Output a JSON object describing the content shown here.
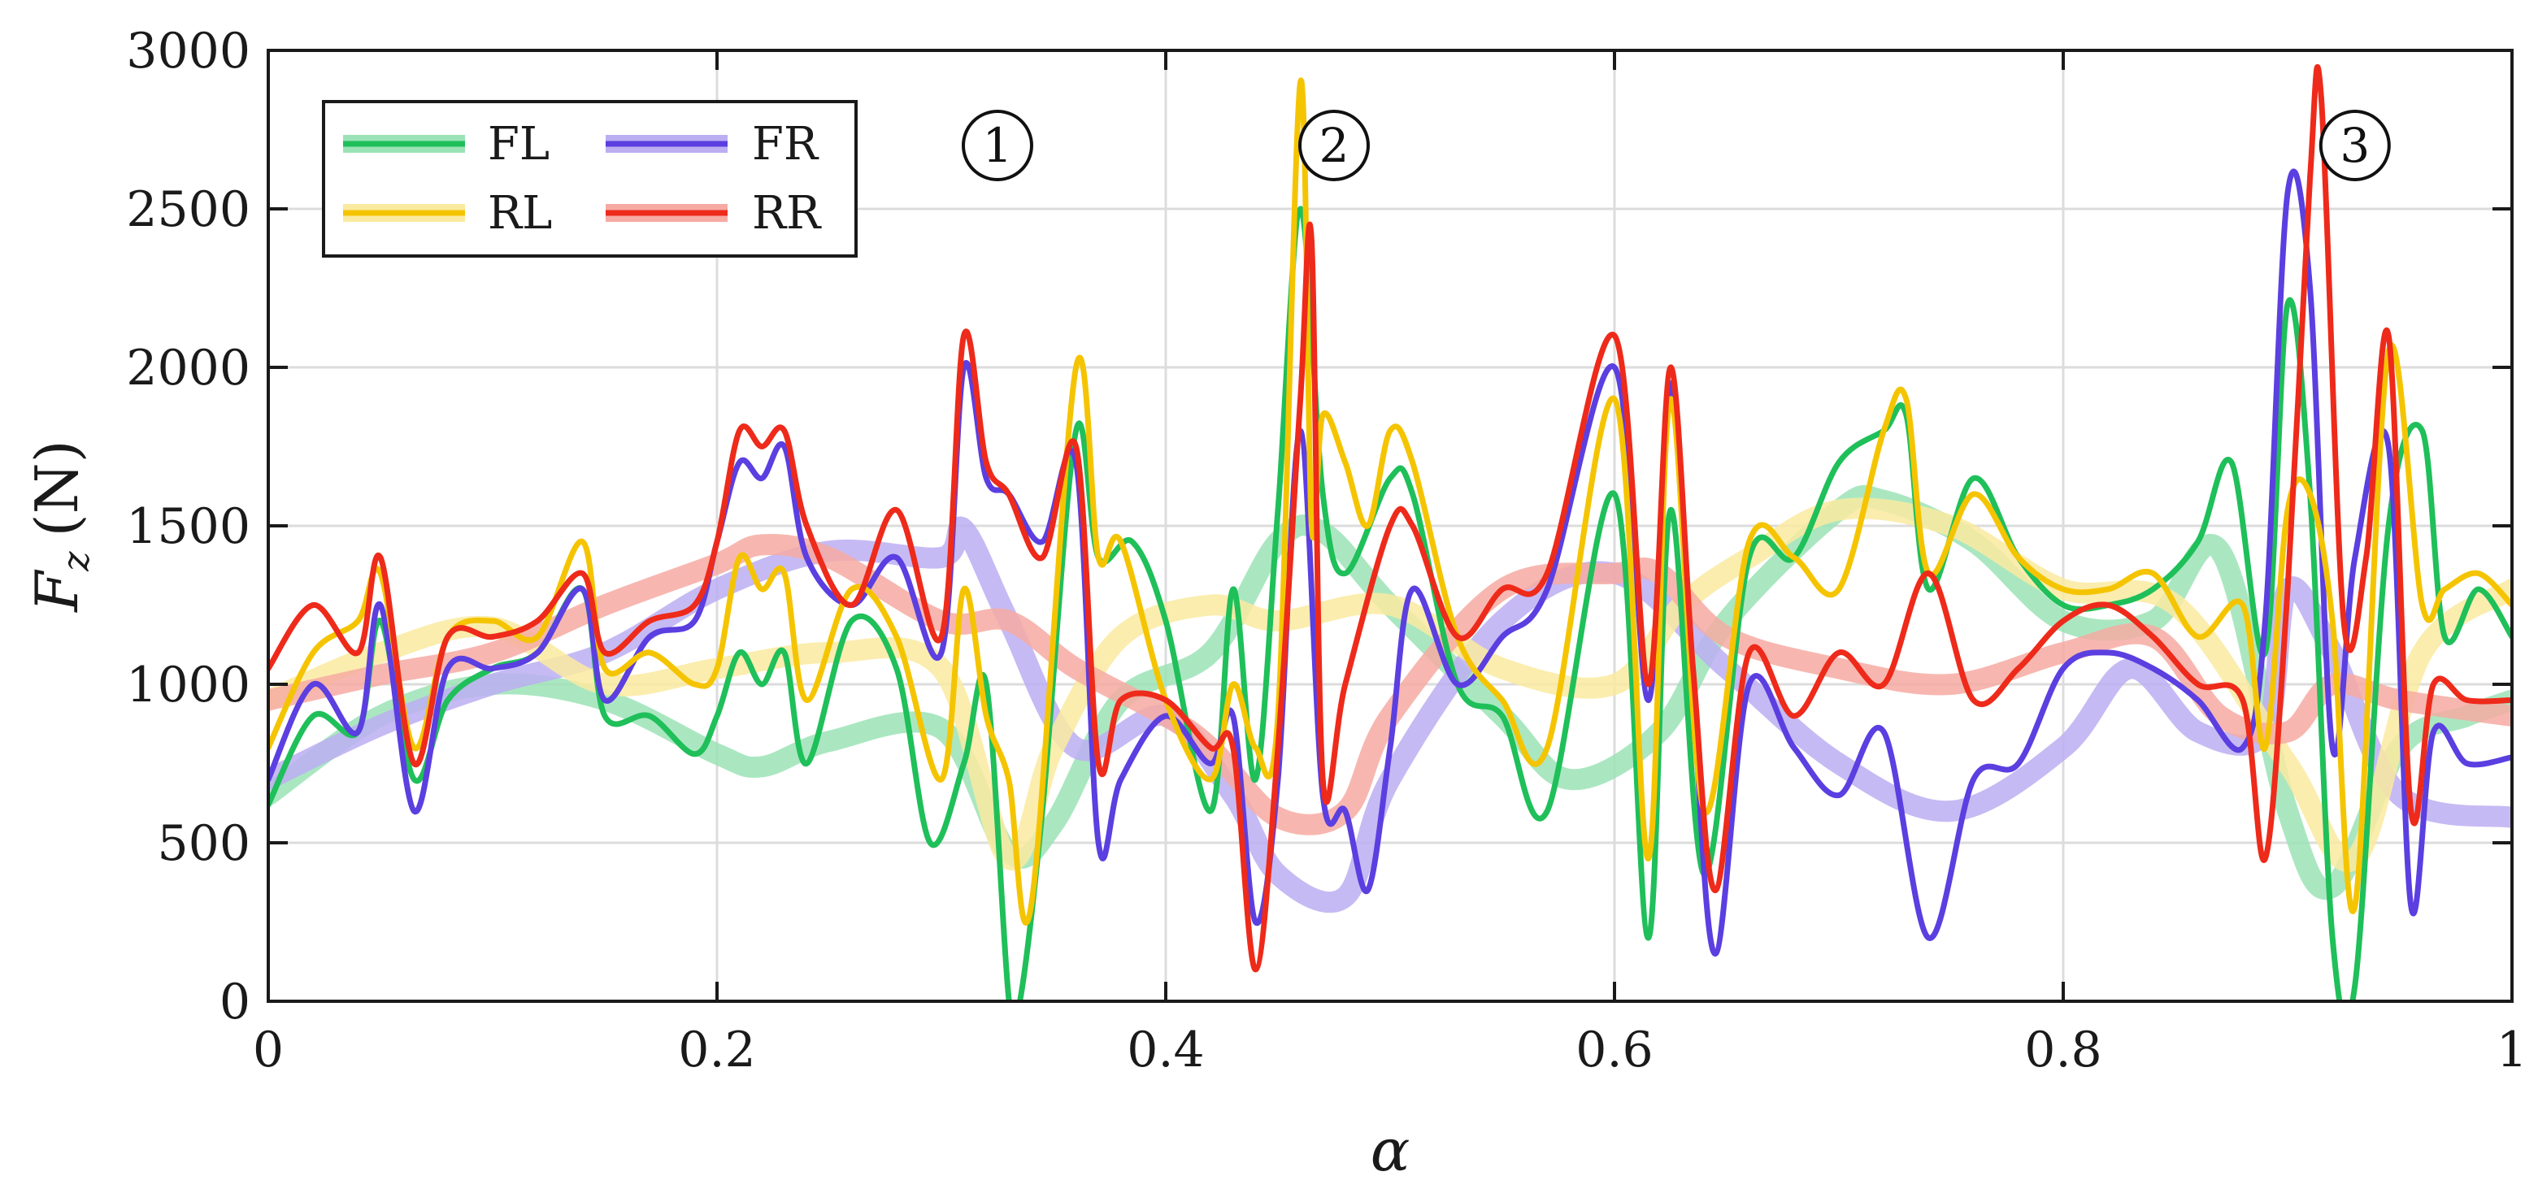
{
  "chart_data": {
    "type": "line",
    "title": "",
    "xlabel": "α",
    "ylabel_main": "F",
    "ylabel_sub": "z",
    "ylabel_unit": "(N)",
    "xlim": [
      0,
      1
    ],
    "ylim": [
      0,
      3000
    ],
    "xticks": [
      0,
      0.2,
      0.4,
      0.6,
      0.8,
      1
    ],
    "xtick_labels": [
      "0",
      "0.2",
      "0.4",
      "0.6",
      "0.8",
      "1"
    ],
    "yticks": [
      0,
      500,
      1000,
      1500,
      2000,
      2500,
      3000
    ],
    "ytick_labels": [
      "0",
      "500",
      "1000",
      "1500",
      "2000",
      "2500",
      "3000"
    ],
    "grid": true,
    "legend_position": "top-left",
    "legend": [
      {
        "name": "FL",
        "color": "#1fbf5a",
        "light_color": "#9be3b6"
      },
      {
        "name": "FR",
        "color": "#5b3fe0",
        "light_color": "#bcaef2"
      },
      {
        "name": "RL",
        "color": "#f5c400",
        "light_color": "#faeaa0"
      },
      {
        "name": "RR",
        "color": "#ee2a1a",
        "light_color": "#f6aaa2"
      }
    ],
    "annotations": [
      {
        "label": "1",
        "x": 0.325,
        "y": 2700
      },
      {
        "label": "2",
        "x": 0.475,
        "y": 2700
      },
      {
        "label": "3",
        "x": 0.93,
        "y": 2700
      }
    ],
    "series": [
      {
        "name": "FL",
        "style": "smooth",
        "color": "#9be3b6",
        "x": [
          0,
          0.05,
          0.1,
          0.15,
          0.2,
          0.22,
          0.25,
          0.3,
          0.33,
          0.35,
          0.38,
          0.42,
          0.45,
          0.47,
          0.5,
          0.55,
          0.58,
          0.62,
          0.65,
          0.7,
          0.72,
          0.76,
          0.8,
          0.84,
          0.87,
          0.9,
          0.92,
          0.95,
          0.98,
          1
        ],
        "y": [
          650,
          900,
          1000,
          950,
          780,
          740,
          820,
          860,
          470,
          560,
          950,
          1100,
          1450,
          1480,
          1250,
          900,
          700,
          850,
          1200,
          1550,
          1580,
          1450,
          1200,
          1200,
          1420,
          600,
          360,
          800,
          900,
          950
        ]
      },
      {
        "name": "FR",
        "style": "smooth",
        "color": "#bcaef2",
        "x": [
          0,
          0.05,
          0.1,
          0.15,
          0.2,
          0.25,
          0.3,
          0.31,
          0.33,
          0.36,
          0.4,
          0.43,
          0.45,
          0.48,
          0.5,
          0.55,
          0.6,
          0.65,
          0.7,
          0.75,
          0.8,
          0.83,
          0.86,
          0.89,
          0.9,
          0.92,
          0.95,
          1
        ],
        "y": [
          700,
          870,
          1000,
          1100,
          1300,
          1420,
          1400,
          1490,
          1200,
          800,
          900,
          650,
          400,
          330,
          700,
          1200,
          1350,
          1050,
          750,
          600,
          800,
          1050,
          850,
          850,
          1300,
          1100,
          650,
          580
        ]
      },
      {
        "name": "RL",
        "style": "smooth",
        "color": "#faeaa0",
        "x": [
          0,
          0.05,
          0.1,
          0.15,
          0.2,
          0.25,
          0.3,
          0.33,
          0.35,
          0.38,
          0.42,
          0.45,
          0.5,
          0.55,
          0.6,
          0.63,
          0.66,
          0.7,
          0.75,
          0.8,
          0.85,
          0.9,
          0.93,
          0.96,
          1
        ],
        "y": [
          950,
          1100,
          1180,
          1000,
          1050,
          1100,
          1050,
          450,
          800,
          1150,
          1250,
          1200,
          1250,
          1050,
          1000,
          1250,
          1400,
          1550,
          1500,
          1300,
          1250,
          750,
          450,
          1100,
          1300
        ]
      },
      {
        "name": "RR",
        "style": "smooth",
        "color": "#f6aaa2",
        "x": [
          0,
          0.05,
          0.1,
          0.15,
          0.2,
          0.22,
          0.25,
          0.3,
          0.33,
          0.36,
          0.4,
          0.42,
          0.45,
          0.48,
          0.5,
          0.55,
          0.6,
          0.62,
          0.65,
          0.7,
          0.75,
          0.8,
          0.84,
          0.87,
          0.9,
          0.92,
          0.95,
          1
        ],
        "y": [
          950,
          1030,
          1100,
          1250,
          1380,
          1440,
          1400,
          1200,
          1200,
          1050,
          900,
          800,
          580,
          600,
          900,
          1300,
          1350,
          1350,
          1150,
          1050,
          1000,
          1100,
          1150,
          900,
          850,
          1000,
          950,
          900
        ]
      },
      {
        "name": "FL",
        "style": "raw",
        "color": "#1fbf5a",
        "x": [
          0,
          0.02,
          0.04,
          0.05,
          0.065,
          0.08,
          0.1,
          0.12,
          0.14,
          0.15,
          0.17,
          0.19,
          0.2,
          0.21,
          0.22,
          0.23,
          0.24,
          0.26,
          0.28,
          0.295,
          0.31,
          0.32,
          0.33,
          0.335,
          0.345,
          0.36,
          0.37,
          0.385,
          0.4,
          0.42,
          0.43,
          0.44,
          0.45,
          0.46,
          0.47,
          0.48,
          0.5,
          0.51,
          0.53,
          0.55,
          0.57,
          0.6,
          0.615,
          0.625,
          0.64,
          0.66,
          0.68,
          0.7,
          0.72,
          0.73,
          0.74,
          0.76,
          0.78,
          0.8,
          0.82,
          0.84,
          0.86,
          0.875,
          0.89,
          0.9,
          0.91,
          0.92,
          0.93,
          0.945,
          0.96,
          0.97,
          0.985,
          1
        ],
        "y": [
          620,
          900,
          850,
          1200,
          700,
          950,
          1050,
          1100,
          1300,
          900,
          900,
          780,
          900,
          1100,
          1000,
          1100,
          750,
          1200,
          1050,
          500,
          750,
          1000,
          10,
          0,
          600,
          1800,
          1400,
          1450,
          1200,
          600,
          1300,
          700,
          1550,
          2500,
          1600,
          1350,
          1650,
          1600,
          1000,
          900,
          600,
          1600,
          200,
          1550,
          400,
          1400,
          1400,
          1700,
          1800,
          1850,
          1300,
          1650,
          1400,
          1250,
          1250,
          1300,
          1450,
          1700,
          1100,
          2200,
          1600,
          200,
          50,
          1500,
          1800,
          1150,
          1300,
          1150
        ]
      },
      {
        "name": "FR",
        "style": "raw",
        "color": "#5b3fe0",
        "x": [
          0,
          0.02,
          0.04,
          0.05,
          0.065,
          0.08,
          0.1,
          0.12,
          0.14,
          0.15,
          0.17,
          0.19,
          0.2,
          0.21,
          0.22,
          0.23,
          0.24,
          0.26,
          0.28,
          0.3,
          0.31,
          0.32,
          0.33,
          0.345,
          0.36,
          0.37,
          0.38,
          0.4,
          0.42,
          0.43,
          0.44,
          0.45,
          0.46,
          0.47,
          0.48,
          0.49,
          0.5,
          0.51,
          0.53,
          0.55,
          0.57,
          0.6,
          0.615,
          0.625,
          0.635,
          0.645,
          0.66,
          0.68,
          0.7,
          0.72,
          0.74,
          0.76,
          0.78,
          0.8,
          0.82,
          0.84,
          0.86,
          0.88,
          0.89,
          0.9,
          0.91,
          0.92,
          0.93,
          0.945,
          0.955,
          0.965,
          0.98,
          1
        ],
        "y": [
          700,
          1000,
          850,
          1250,
          600,
          1050,
          1050,
          1100,
          1300,
          950,
          1150,
          1200,
          1450,
          1700,
          1650,
          1750,
          1400,
          1250,
          1400,
          1100,
          2000,
          1650,
          1600,
          1450,
          1700,
          500,
          700,
          900,
          750,
          900,
          250,
          700,
          1800,
          650,
          600,
          350,
          800,
          1300,
          1000,
          1150,
          1300,
          2000,
          950,
          1950,
          950,
          150,
          1000,
          800,
          650,
          850,
          200,
          700,
          750,
          1050,
          1100,
          1050,
          950,
          800,
          1200,
          2550,
          2250,
          800,
          1400,
          1750,
          300,
          850,
          750,
          770
        ]
      },
      {
        "name": "RL",
        "style": "raw",
        "color": "#f5c400",
        "x": [
          0,
          0.02,
          0.04,
          0.05,
          0.065,
          0.08,
          0.1,
          0.12,
          0.14,
          0.15,
          0.17,
          0.19,
          0.2,
          0.21,
          0.22,
          0.23,
          0.24,
          0.26,
          0.28,
          0.3,
          0.31,
          0.32,
          0.33,
          0.34,
          0.36,
          0.37,
          0.38,
          0.4,
          0.42,
          0.43,
          0.44,
          0.45,
          0.46,
          0.465,
          0.47,
          0.48,
          0.49,
          0.5,
          0.51,
          0.53,
          0.55,
          0.57,
          0.6,
          0.615,
          0.625,
          0.64,
          0.66,
          0.68,
          0.7,
          0.72,
          0.73,
          0.74,
          0.76,
          0.78,
          0.8,
          0.82,
          0.84,
          0.86,
          0.88,
          0.89,
          0.9,
          0.91,
          0.92,
          0.93,
          0.945,
          0.96,
          0.97,
          0.985,
          1
        ],
        "y": [
          800,
          1100,
          1200,
          1350,
          800,
          1150,
          1200,
          1150,
          1450,
          1050,
          1100,
          1000,
          1050,
          1400,
          1300,
          1350,
          950,
          1300,
          1150,
          700,
          1300,
          900,
          700,
          300,
          2000,
          1400,
          1450,
          950,
          700,
          1000,
          800,
          900,
          2900,
          1500,
          1850,
          1700,
          1500,
          1800,
          1700,
          1150,
          950,
          800,
          1900,
          450,
          1900,
          600,
          1450,
          1400,
          1300,
          1800,
          1900,
          1350,
          1600,
          1400,
          1300,
          1300,
          1350,
          1150,
          1250,
          800,
          1550,
          1600,
          1200,
          300,
          2050,
          1250,
          1300,
          1350,
          1250
        ]
      },
      {
        "name": "RR",
        "style": "raw",
        "color": "#ee2a1a",
        "x": [
          0,
          0.02,
          0.04,
          0.05,
          0.065,
          0.08,
          0.1,
          0.12,
          0.14,
          0.15,
          0.17,
          0.19,
          0.2,
          0.21,
          0.22,
          0.23,
          0.24,
          0.26,
          0.28,
          0.3,
          0.31,
          0.32,
          0.33,
          0.345,
          0.36,
          0.37,
          0.38,
          0.4,
          0.42,
          0.43,
          0.44,
          0.45,
          0.46,
          0.465,
          0.47,
          0.48,
          0.5,
          0.51,
          0.53,
          0.55,
          0.57,
          0.6,
          0.615,
          0.625,
          0.635,
          0.645,
          0.66,
          0.68,
          0.7,
          0.72,
          0.74,
          0.76,
          0.78,
          0.8,
          0.82,
          0.84,
          0.86,
          0.88,
          0.89,
          0.9,
          0.91,
          0.915,
          0.925,
          0.935,
          0.945,
          0.955,
          0.965,
          0.98,
          1
        ],
        "y": [
          1050,
          1250,
          1100,
          1400,
          750,
          1150,
          1150,
          1200,
          1350,
          1100,
          1200,
          1250,
          1450,
          1800,
          1750,
          1800,
          1500,
          1250,
          1550,
          1150,
          2100,
          1700,
          1600,
          1400,
          1750,
          750,
          950,
          950,
          800,
          800,
          100,
          800,
          1900,
          2400,
          700,
          1000,
          1500,
          1500,
          1150,
          1300,
          1350,
          2100,
          1000,
          2000,
          1050,
          350,
          1100,
          900,
          1100,
          1000,
          1350,
          950,
          1050,
          1200,
          1250,
          1150,
          1000,
          950,
          450,
          1300,
          2600,
          2850,
          1200,
          1400,
          2100,
          600,
          1000,
          950,
          950
        ]
      }
    ]
  }
}
